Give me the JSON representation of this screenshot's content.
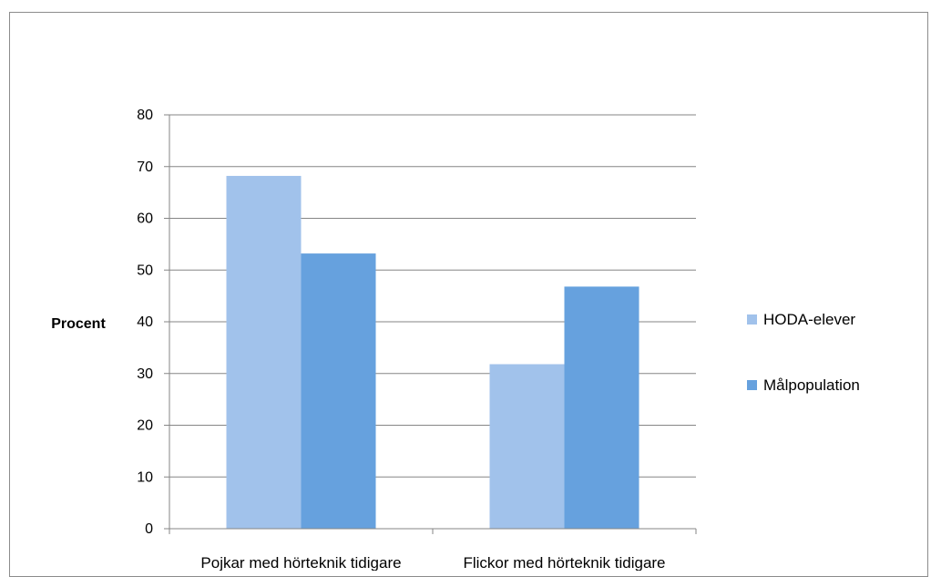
{
  "chart_data": {
    "type": "bar",
    "title": "",
    "xlabel": "",
    "ylabel": "Procent",
    "ylim": [
      0,
      80
    ],
    "yticks": [
      0,
      10,
      20,
      30,
      40,
      50,
      60,
      70,
      80
    ],
    "grid": true,
    "legend_position": "right",
    "categories": [
      "Pojkar med hörteknik tidigare",
      "Flickor med hörteknik tidigare"
    ],
    "series": [
      {
        "name": "HODA-elever",
        "values": [
          68.2,
          31.8
        ],
        "color": "#a1c2eb"
      },
      {
        "name": "Målpopulation",
        "values": [
          53.2,
          46.8
        ],
        "color": "#66a1de"
      }
    ]
  }
}
